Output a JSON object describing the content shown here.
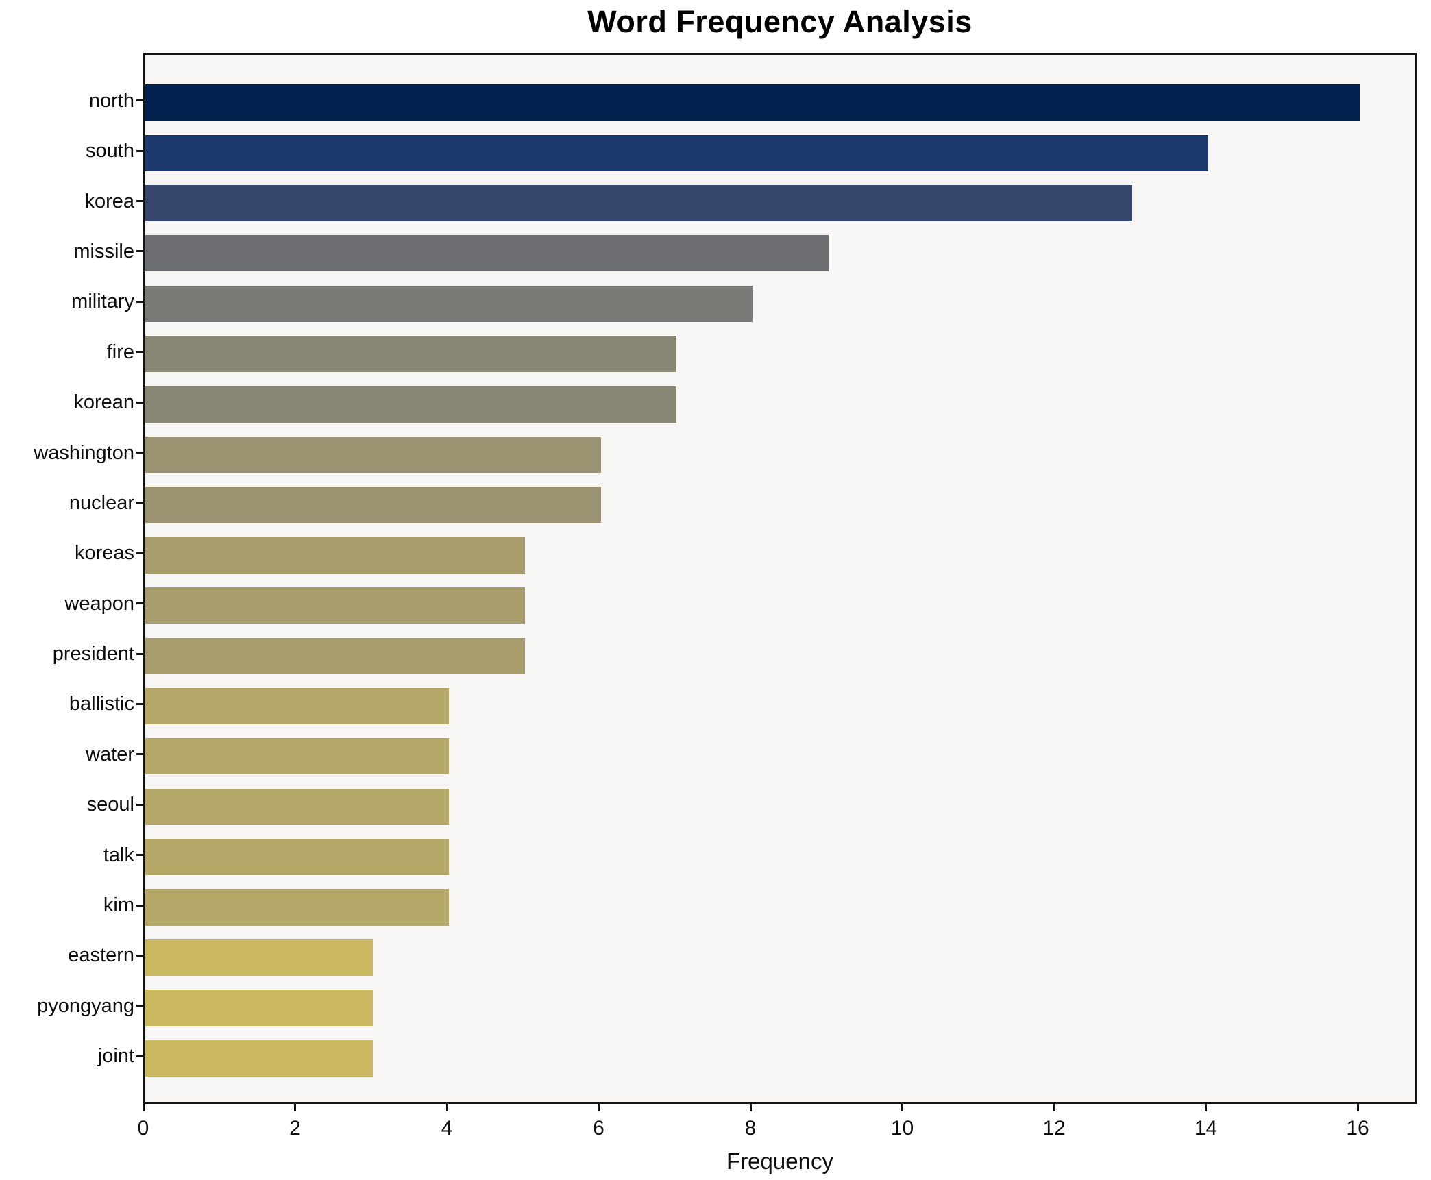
{
  "title": "Word Frequency Analysis",
  "xlabel": "Frequency",
  "chart_data": {
    "type": "bar",
    "orientation": "horizontal",
    "title": "Word Frequency Analysis",
    "xlabel": "Frequency",
    "ylabel": "",
    "grid": false,
    "legend": "none",
    "plot_background": "#f7f6f5",
    "spine_color": "#141414",
    "xlim": [
      0,
      16.78
    ],
    "x_ticks": [
      0,
      2,
      4,
      6,
      8,
      10,
      12,
      14,
      16
    ],
    "categories": [
      "north",
      "south",
      "korea",
      "missile",
      "military",
      "fire",
      "korean",
      "washington",
      "nuclear",
      "koreas",
      "weapon",
      "president",
      "ballistic",
      "water",
      "seoul",
      "talk",
      "kim",
      "eastern",
      "pyongyang",
      "joint"
    ],
    "values": [
      16,
      14,
      13,
      9,
      8,
      7,
      7,
      6,
      6,
      5,
      5,
      5,
      4,
      4,
      4,
      4,
      4,
      3,
      3,
      3
    ],
    "bar_colors": [
      "#01224e",
      "#1e3a6c",
      "#36466c",
      "#6c6d71",
      "#7b7a77",
      "#8a8674",
      "#8a8674",
      "#9a9270",
      "#9a9270",
      "#a79d6c",
      "#a79d6c",
      "#a79d6c",
      "#b3a868",
      "#b3a868",
      "#b3a868",
      "#b3a868",
      "#b3a868",
      "#cbb962",
      "#cbb962",
      "#cbb962"
    ]
  }
}
